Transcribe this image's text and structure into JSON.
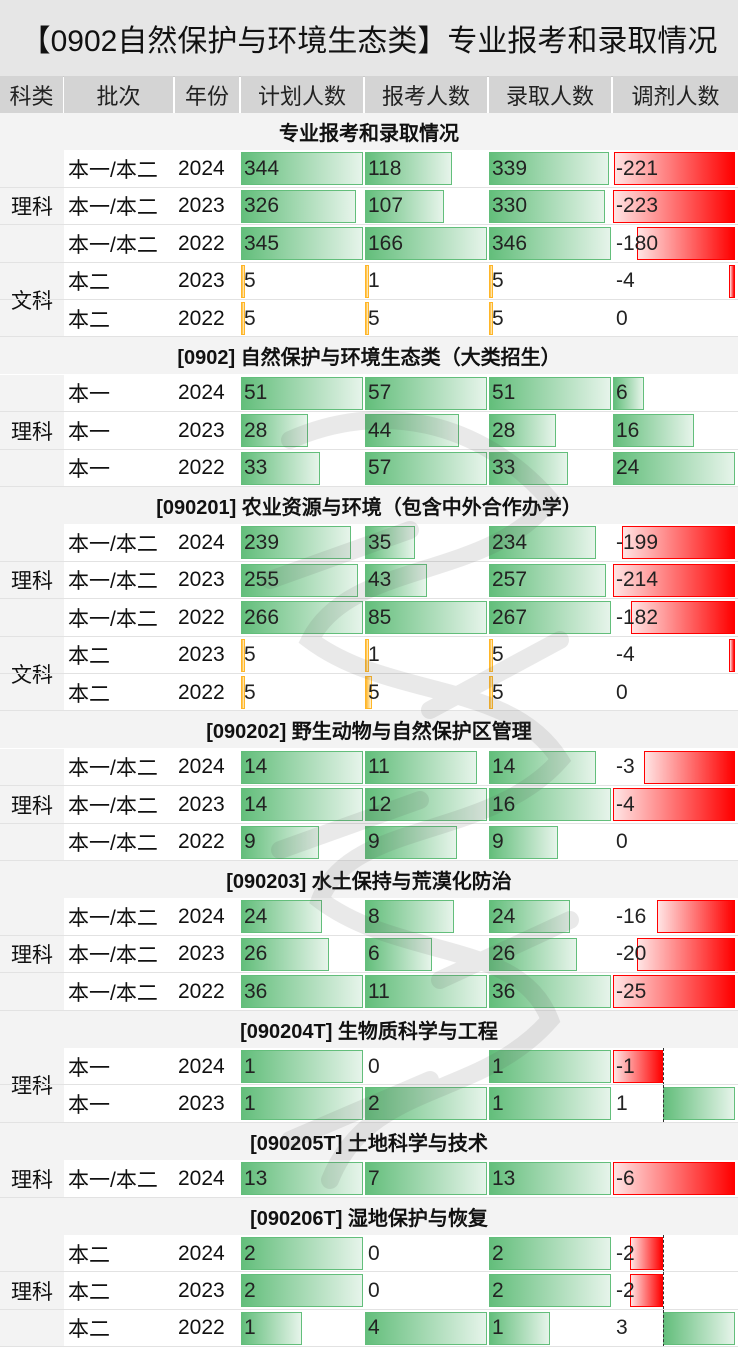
{
  "title": "【0902自然保护与环境生态类】专业报考和录取情况",
  "headers": [
    "科类",
    "批次",
    "年份",
    "计划人数",
    "报考人数",
    "录取人数",
    "调剂人数"
  ],
  "colors": {
    "green": "#63be7b",
    "orange": "#ffb628",
    "red": "#ff0000"
  },
  "sections": [
    {
      "title": "专业报考和录取情况",
      "groups": [
        {
          "subject": "理科",
          "rows": [
            {
              "batch": "本一/本二",
              "year": "2024",
              "plan": 344,
              "apply": 118,
              "admit": 339,
              "adjust": -221
            },
            {
              "batch": "本一/本二",
              "year": "2023",
              "plan": 326,
              "apply": 107,
              "admit": 330,
              "adjust": -223
            },
            {
              "batch": "本一/本二",
              "year": "2022",
              "plan": 345,
              "apply": 166,
              "admit": 346,
              "adjust": -180
            }
          ]
        },
        {
          "subject": "文科",
          "style": "orange",
          "rows": [
            {
              "batch": "本二",
              "year": "2023",
              "plan": 5,
              "apply": 1,
              "admit": 5,
              "adjust": -4
            },
            {
              "batch": "本二",
              "year": "2022",
              "plan": 5,
              "apply": 5,
              "admit": 5,
              "adjust": 0
            }
          ]
        }
      ]
    },
    {
      "title": "[0902] 自然保护与环境生态类（大类招生）",
      "groups": [
        {
          "subject": "理科",
          "rows": [
            {
              "batch": "本一",
              "year": "2024",
              "plan": 51,
              "apply": 57,
              "admit": 51,
              "adjust": 6
            },
            {
              "batch": "本一",
              "year": "2023",
              "plan": 28,
              "apply": 44,
              "admit": 28,
              "adjust": 16
            },
            {
              "batch": "本一",
              "year": "2022",
              "plan": 33,
              "apply": 57,
              "admit": 33,
              "adjust": 24
            }
          ]
        }
      ]
    },
    {
      "title": "[090201] 农业资源与环境（包含中外合作办学）",
      "groups": [
        {
          "subject": "理科",
          "rows": [
            {
              "batch": "本一/本二",
              "year": "2024",
              "plan": 239,
              "apply": 35,
              "admit": 234,
              "adjust": -199
            },
            {
              "batch": "本一/本二",
              "year": "2023",
              "plan": 255,
              "apply": 43,
              "admit": 257,
              "adjust": -214
            },
            {
              "batch": "本一/本二",
              "year": "2022",
              "plan": 266,
              "apply": 85,
              "admit": 267,
              "adjust": -182
            }
          ]
        },
        {
          "subject": "文科",
          "style": "orange",
          "rows": [
            {
              "batch": "本二",
              "year": "2023",
              "plan": 5,
              "apply": 1,
              "admit": 5,
              "adjust": -4
            },
            {
              "batch": "本二",
              "year": "2022",
              "plan": 5,
              "apply": 5,
              "admit": 5,
              "adjust": 0
            }
          ]
        }
      ]
    },
    {
      "title": "[090202] 野生动物与自然保护区管理",
      "groups": [
        {
          "subject": "理科",
          "rows": [
            {
              "batch": "本一/本二",
              "year": "2024",
              "plan": 14,
              "apply": 11,
              "admit": 14,
              "adjust": -3
            },
            {
              "batch": "本一/本二",
              "year": "2023",
              "plan": 14,
              "apply": 12,
              "admit": 16,
              "adjust": -4
            },
            {
              "batch": "本一/本二",
              "year": "2022",
              "plan": 9,
              "apply": 9,
              "admit": 9,
              "adjust": 0
            }
          ]
        }
      ]
    },
    {
      "title": "[090203] 水土保持与荒漠化防治",
      "groups": [
        {
          "subject": "理科",
          "rows": [
            {
              "batch": "本一/本二",
              "year": "2024",
              "plan": 24,
              "apply": 8,
              "admit": 24,
              "adjust": -16
            },
            {
              "batch": "本一/本二",
              "year": "2023",
              "plan": 26,
              "apply": 6,
              "admit": 26,
              "adjust": -20
            },
            {
              "batch": "本一/本二",
              "year": "2022",
              "plan": 36,
              "apply": 11,
              "admit": 36,
              "adjust": -25
            }
          ]
        }
      ]
    },
    {
      "title": "[090204T] 生物质科学与工程",
      "groups": [
        {
          "subject": "理科",
          "rows": [
            {
              "batch": "本一",
              "year": "2024",
              "plan": 1,
              "apply": 0,
              "admit": 1,
              "adjust": -1
            },
            {
              "batch": "本一",
              "year": "2023",
              "plan": 1,
              "apply": 2,
              "admit": 1,
              "adjust": 1
            }
          ]
        }
      ]
    },
    {
      "title": "[090205T] 土地科学与技术",
      "groups": [
        {
          "subject": "理科",
          "rows": [
            {
              "batch": "本一/本二",
              "year": "2024",
              "plan": 13,
              "apply": 7,
              "admit": 13,
              "adjust": -6
            }
          ]
        }
      ]
    },
    {
      "title": "[090206T] 湿地保护与恢复",
      "groups": [
        {
          "subject": "理科",
          "rows": [
            {
              "batch": "本二",
              "year": "2024",
              "plan": 2,
              "apply": 0,
              "admit": 2,
              "adjust": -2
            },
            {
              "batch": "本二",
              "year": "2023",
              "plan": 2,
              "apply": 0,
              "admit": 2,
              "adjust": -2
            },
            {
              "batch": "本二",
              "year": "2022",
              "plan": 1,
              "apply": 4,
              "admit": 1,
              "adjust": 3
            }
          ]
        }
      ]
    }
  ]
}
